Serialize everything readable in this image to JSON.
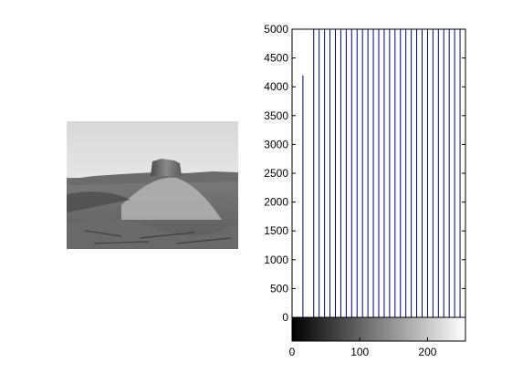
{
  "window": {
    "background": "#ffffff"
  },
  "photo": {
    "description_icon": "grayscale-desert-landscape-image"
  },
  "chart_data": {
    "type": "bar",
    "subtype": "stem",
    "title": "",
    "xlabel": "",
    "ylabel": "",
    "xlim": [
      0,
      256
    ],
    "ylim": [
      0,
      5000
    ],
    "x_ticks": [
      0,
      100,
      200
    ],
    "y_ticks": [
      0,
      500,
      1000,
      1500,
      2000,
      2500,
      3000,
      3500,
      4000,
      4500,
      5000
    ],
    "x_tick_labels": [
      "0",
      "100",
      "200"
    ],
    "y_tick_labels": [
      "0",
      "500",
      "1000",
      "1500",
      "2000",
      "2500",
      "3000",
      "3500",
      "4000",
      "4500",
      "5000"
    ],
    "series": [
      {
        "color": "#000080",
        "x": [
          16,
          32,
          40,
          48,
          56,
          64,
          72,
          80,
          88,
          96,
          104,
          112,
          120,
          128,
          136,
          144,
          152,
          160,
          168,
          176,
          184,
          192,
          200,
          208,
          216,
          224,
          232,
          240,
          248
        ],
        "values": [
          4200,
          5000,
          5000,
          5000,
          5000,
          5000,
          5000,
          5000,
          5000,
          5000,
          5000,
          5000,
          5000,
          5000,
          5000,
          5000,
          5000,
          5000,
          5000,
          5000,
          5000,
          5000,
          5000,
          5000,
          5000,
          5000,
          5000,
          5000,
          5000
        ]
      }
    ],
    "colorbar": {
      "type": "grayscale",
      "range": [
        0,
        255
      ]
    },
    "grid": false
  }
}
